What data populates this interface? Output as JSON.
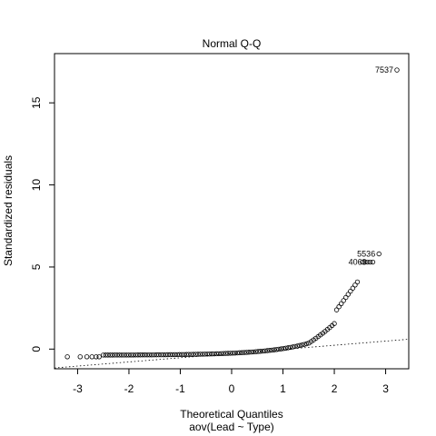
{
  "chart_data": {
    "type": "scatter",
    "title": "Normal Q-Q",
    "xlabel": "Theoretical Quantiles",
    "subtitle": "aov(Lead ~ Type)",
    "ylabel": "Standardized residuals",
    "xlim": [
      -3.45,
      3.45
    ],
    "ylim": [
      -1.2,
      18.0
    ],
    "x_ticks": [
      -3,
      -2,
      -1,
      0,
      1,
      2,
      3
    ],
    "y_ticks": [
      0,
      5,
      10,
      15
    ],
    "grid": false,
    "legend": "none",
    "reference_line": {
      "style": "dotted",
      "points": [
        [
          -3.45,
          -1.15
        ],
        [
          3.45,
          0.6
        ]
      ]
    },
    "points_pattern": {
      "range_x": [
        -3.2,
        3.2
      ],
      "note": "dense hollow circles along a convex curve"
    },
    "labeled_points": [
      {
        "label": "7537",
        "x": 3.22,
        "y": 17.0
      },
      {
        "label": "5536",
        "x": 2.87,
        "y": 5.8
      },
      {
        "label": "4069",
        "x": 2.7,
        "y": 5.3
      }
    ]
  }
}
